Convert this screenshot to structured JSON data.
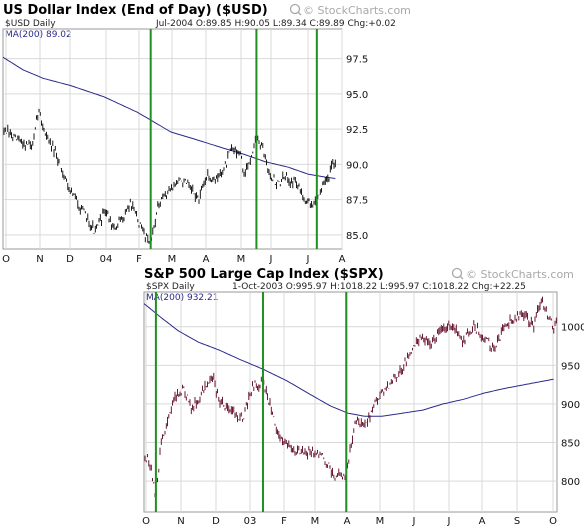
{
  "chart_data": [
    {
      "type": "line",
      "title": "US Dollar Index (End of Day) ($USD)",
      "watermark": "© StockCharts.com",
      "series_label": "$USD Daily",
      "info_line": "Jul-2004 O:89.85 H:90.05 L:89.34 C:89.89 Chg:+0.02",
      "ma_label": "MA(200) 89.02",
      "x_tick_labels": [
        "O",
        "N",
        "D",
        "04",
        "F",
        "M",
        "A",
        "M",
        "J",
        "J",
        "A"
      ],
      "y_ticks": [
        85.0,
        87.5,
        90.0,
        92.5,
        95.0,
        97.5
      ],
      "y_tick_labels": [
        "85.0",
        "87.5",
        "90.0",
        "92.5",
        "95.0",
        "97.5"
      ],
      "ylim": [
        84.0,
        99.6
      ],
      "x_range_months": [
        0,
        10.1
      ],
      "vertical_markers_months": [
        4.4,
        7.55,
        9.35
      ],
      "price_anchors": [
        [
          0,
          92.5
        ],
        [
          0.3,
          91.9
        ],
        [
          0.6,
          91.5
        ],
        [
          0.9,
          91.3
        ],
        [
          1.05,
          93.9
        ],
        [
          1.25,
          92.3
        ],
        [
          1.6,
          90.5
        ],
        [
          2.0,
          88.2
        ],
        [
          2.4,
          86.6
        ],
        [
          2.75,
          85.2
        ],
        [
          3.05,
          86.8
        ],
        [
          3.3,
          85.3
        ],
        [
          3.55,
          86.1
        ],
        [
          3.8,
          87.3
        ],
        [
          3.95,
          86.4
        ],
        [
          4.15,
          85.3
        ],
        [
          4.4,
          84.6
        ],
        [
          4.6,
          86.8
        ],
        [
          4.85,
          87.9
        ],
        [
          5.1,
          88.6
        ],
        [
          5.35,
          88.9
        ],
        [
          5.6,
          88.2
        ],
        [
          5.85,
          87.5
        ],
        [
          6.05,
          89.2
        ],
        [
          6.35,
          88.9
        ],
        [
          6.6,
          89.7
        ],
        [
          6.8,
          91.1
        ],
        [
          7.05,
          90.9
        ],
        [
          7.2,
          89.1
        ],
        [
          7.4,
          90.7
        ],
        [
          7.55,
          91.9
        ],
        [
          7.75,
          90.9
        ],
        [
          7.95,
          89.4
        ],
        [
          8.15,
          88.6
        ],
        [
          8.45,
          89.1
        ],
        [
          8.75,
          88.6
        ],
        [
          9.05,
          87.4
        ],
        [
          9.25,
          87.1
        ],
        [
          9.45,
          88.1
        ],
        [
          9.65,
          88.9
        ],
        [
          9.8,
          89.8
        ],
        [
          9.9,
          89.9
        ]
      ],
      "ma_anchors": [
        [
          0,
          97.6
        ],
        [
          0.6,
          96.7
        ],
        [
          1.2,
          96.1
        ],
        [
          2.0,
          95.6
        ],
        [
          3.0,
          94.8
        ],
        [
          4.0,
          93.7
        ],
        [
          5.0,
          92.3
        ],
        [
          5.7,
          91.8
        ],
        [
          6.5,
          91.2
        ],
        [
          7.2,
          90.7
        ],
        [
          7.8,
          90.2
        ],
        [
          8.5,
          89.8
        ],
        [
          9.1,
          89.3
        ],
        [
          9.6,
          89.1
        ],
        [
          9.9,
          89.0
        ]
      ],
      "colors": {
        "price": "#000000",
        "ma": "#2a2a8a",
        "marker": "#1f8f1f",
        "grid": "#d9d9d9",
        "title": "#000000",
        "watermark": "#a8a8a8",
        "sub": "#222222"
      }
    },
    {
      "type": "line",
      "title": "S&P 500 Large Cap Index ($SPX)",
      "watermark": "© StockCharts.com",
      "series_label": "$SPX Daily",
      "info_line": "1-Oct-2003 O:995.97 H:1018.22 L:995.97 C:1018.22 Chg:+22.25",
      "ma_label": "MA(200) 932.21",
      "x_tick_labels": [
        "O",
        "N",
        "D",
        "03",
        "F",
        "M",
        "A",
        "M",
        "J",
        "J",
        "A",
        "S",
        "O"
      ],
      "y_ticks": [
        800,
        850,
        900,
        950,
        1000
      ],
      "y_tick_labels": [
        "800",
        "850",
        "900",
        "950",
        "1000"
      ],
      "ylim": [
        760,
        1045
      ],
      "x_range_months": [
        0,
        12.15
      ],
      "vertical_markers_months": [
        0.35,
        3.5,
        5.95
      ],
      "price_anchors": [
        [
          0,
          835
        ],
        [
          0.2,
          820
        ],
        [
          0.35,
          776
        ],
        [
          0.5,
          850
        ],
        [
          0.7,
          880
        ],
        [
          0.9,
          905
        ],
        [
          1.15,
          920
        ],
        [
          1.4,
          895
        ],
        [
          1.7,
          912
        ],
        [
          2.0,
          940
        ],
        [
          2.2,
          905
        ],
        [
          2.5,
          895
        ],
        [
          2.75,
          885
        ],
        [
          2.9,
          880
        ],
        [
          3.2,
          922
        ],
        [
          3.5,
          928
        ],
        [
          3.7,
          900
        ],
        [
          3.95,
          860
        ],
        [
          4.3,
          845
        ],
        [
          4.6,
          835
        ],
        [
          4.9,
          840
        ],
        [
          5.3,
          830
        ],
        [
          5.6,
          805
        ],
        [
          5.8,
          810
        ],
        [
          5.95,
          805
        ],
        [
          6.05,
          840
        ],
        [
          6.25,
          880
        ],
        [
          6.45,
          870
        ],
        [
          6.7,
          890
        ],
        [
          6.95,
          910
        ],
        [
          7.3,
          930
        ],
        [
          7.6,
          945
        ],
        [
          7.9,
          970
        ],
        [
          8.2,
          990
        ],
        [
          8.45,
          975
        ],
        [
          8.8,
          1000
        ],
        [
          9.1,
          1000
        ],
        [
          9.35,
          980
        ],
        [
          9.7,
          1000
        ],
        [
          10.0,
          985
        ],
        [
          10.3,
          970
        ],
        [
          10.6,
          1000
        ],
        [
          10.9,
          1010
        ],
        [
          11.2,
          1015
        ],
        [
          11.45,
          1000
        ],
        [
          11.7,
          1035
        ],
        [
          11.9,
          1010
        ],
        [
          12.05,
          1000
        ],
        [
          12.15,
          1018
        ]
      ],
      "ma_anchors": [
        [
          0,
          1030
        ],
        [
          0.5,
          1012
        ],
        [
          1.0,
          995
        ],
        [
          1.6,
          980
        ],
        [
          2.2,
          970
        ],
        [
          2.8,
          958
        ],
        [
          3.5,
          945
        ],
        [
          4.2,
          930
        ],
        [
          4.9,
          912
        ],
        [
          5.5,
          897
        ],
        [
          6.0,
          888
        ],
        [
          6.5,
          884
        ],
        [
          7.0,
          884
        ],
        [
          7.6,
          888
        ],
        [
          8.2,
          892
        ],
        [
          8.8,
          900
        ],
        [
          9.4,
          906
        ],
        [
          10.0,
          914
        ],
        [
          10.6,
          920
        ],
        [
          11.2,
          925
        ],
        [
          11.8,
          930
        ],
        [
          12.05,
          932
        ]
      ],
      "colors": {
        "price": "#5a001c",
        "ma": "#2a2a8a",
        "marker": "#1f8f1f",
        "grid": "#d9d9d9",
        "title": "#000000",
        "watermark": "#a8a8a8",
        "sub": "#222222"
      }
    }
  ]
}
